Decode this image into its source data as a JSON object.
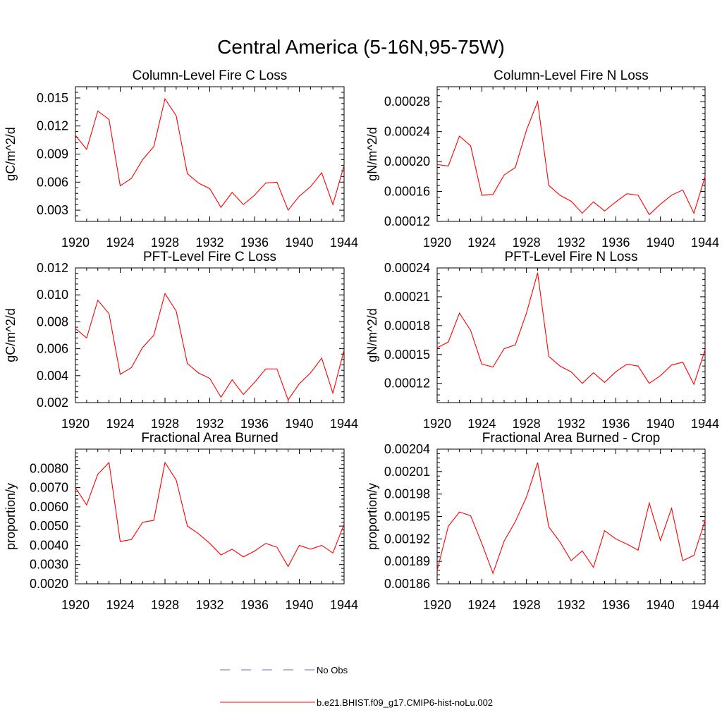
{
  "figure": {
    "title": "Central America (5-16N,95-75W)"
  },
  "legend": {
    "entries": [
      {
        "label": "No Obs",
        "color": "#6a6ad8",
        "style": "dashed"
      },
      {
        "label": "b.e21.BHIST.f09_g17.CMIP6-hist-noLu.002",
        "color": "#ff0000",
        "style": "solid"
      }
    ]
  },
  "chart_data": [
    {
      "type": "line",
      "title": "Column-Level Fire C Loss",
      "ylabel": "gC/m^2/d",
      "xlim": [
        1920,
        1944
      ],
      "xticks": [
        "1920",
        "1924",
        "1928",
        "1932",
        "1936",
        "1940",
        "1944"
      ],
      "ylim": [
        0.0018,
        0.0162
      ],
      "yticks": [
        0.003,
        0.006,
        0.009,
        0.012,
        0.015
      ],
      "ytick_labels": [
        "0.003",
        "0.006",
        "0.009",
        "0.012",
        "0.015"
      ],
      "series": [
        {
          "color": "#ff0000",
          "x": [
            1920,
            1921,
            1922,
            1923,
            1924,
            1925,
            1926,
            1927,
            1928,
            1929,
            1930,
            1931,
            1932,
            1933,
            1934,
            1935,
            1936,
            1937,
            1938,
            1939,
            1940,
            1941,
            1942,
            1943,
            1944
          ],
          "values": [
            0.011,
            0.0095,
            0.0136,
            0.0127,
            0.0056,
            0.0064,
            0.0084,
            0.0098,
            0.0149,
            0.0131,
            0.0069,
            0.0059,
            0.0053,
            0.0033,
            0.0049,
            0.0036,
            0.0046,
            0.0059,
            0.006,
            0.003,
            0.0045,
            0.0055,
            0.007,
            0.0036,
            0.0078
          ]
        }
      ]
    },
    {
      "type": "line",
      "title": "Column-Level Fire N Loss",
      "ylabel": "gN/m^2/d",
      "xlim": [
        1920,
        1944
      ],
      "xticks": [
        "1920",
        "1924",
        "1928",
        "1932",
        "1936",
        "1940",
        "1944"
      ],
      "ylim": [
        0.00012,
        0.0003
      ],
      "yticks": [
        0.00012,
        0.00016,
        0.0002,
        0.00024,
        0.00028
      ],
      "ytick_labels": [
        "0.00012",
        "0.00016",
        "0.00020",
        "0.00024",
        "0.00028"
      ],
      "series": [
        {
          "color": "#ff0000",
          "x": [
            1920,
            1921,
            1922,
            1923,
            1924,
            1925,
            1926,
            1927,
            1928,
            1929,
            1930,
            1931,
            1932,
            1933,
            1934,
            1935,
            1936,
            1937,
            1938,
            1939,
            1940,
            1941,
            1942,
            1943,
            1944
          ],
          "values": [
            0.000196,
            0.000194,
            0.000234,
            0.000221,
            0.000155,
            0.000156,
            0.000182,
            0.000192,
            0.000242,
            0.00028,
            0.000168,
            0.000155,
            0.000147,
            0.000131,
            0.000146,
            0.000134,
            0.000146,
            0.000157,
            0.000155,
            0.000129,
            0.000143,
            0.000155,
            0.000162,
            0.000131,
            0.00018
          ]
        }
      ]
    },
    {
      "type": "line",
      "title": "PFT-Level Fire C Loss",
      "ylabel": "gC/m^2/d",
      "xlim": [
        1920,
        1944
      ],
      "xticks": [
        "1920",
        "1924",
        "1928",
        "1932",
        "1936",
        "1940",
        "1944"
      ],
      "ylim": [
        0.002,
        0.012
      ],
      "yticks": [
        0.002,
        0.004,
        0.006,
        0.008,
        0.01,
        0.012
      ],
      "ytick_labels": [
        "0.002",
        "0.004",
        "0.006",
        "0.008",
        "0.010",
        "0.012"
      ],
      "series": [
        {
          "color": "#ff0000",
          "x": [
            1920,
            1921,
            1922,
            1923,
            1924,
            1925,
            1926,
            1927,
            1928,
            1929,
            1930,
            1931,
            1932,
            1933,
            1934,
            1935,
            1936,
            1937,
            1938,
            1939,
            1940,
            1941,
            1942,
            1943,
            1944
          ],
          "values": [
            0.0075,
            0.0068,
            0.0096,
            0.0086,
            0.0041,
            0.0046,
            0.0061,
            0.007,
            0.0101,
            0.0088,
            0.0049,
            0.0042,
            0.0038,
            0.0024,
            0.0037,
            0.0026,
            0.0035,
            0.0045,
            0.0045,
            0.0022,
            0.0034,
            0.0042,
            0.0053,
            0.0027,
            0.0059
          ]
        }
      ]
    },
    {
      "type": "line",
      "title": "PFT-Level Fire N Loss",
      "ylabel": "gN/m^2/d",
      "xlim": [
        1920,
        1944
      ],
      "xticks": [
        "1920",
        "1924",
        "1928",
        "1932",
        "1936",
        "1940",
        "1944"
      ],
      "ylim": [
        0.0001,
        0.00024
      ],
      "yticks": [
        0.00012,
        0.00015,
        0.00018,
        0.00021,
        0.00024
      ],
      "ytick_labels": [
        "0.00012",
        "0.00015",
        "0.00018",
        "0.00021",
        "0.00024"
      ],
      "series": [
        {
          "color": "#ff0000",
          "x": [
            1920,
            1921,
            1922,
            1923,
            1924,
            1925,
            1926,
            1927,
            1928,
            1929,
            1930,
            1931,
            1932,
            1933,
            1934,
            1935,
            1936,
            1937,
            1938,
            1939,
            1940,
            1941,
            1942,
            1943,
            1944
          ],
          "values": [
            0.000157,
            0.000163,
            0.000193,
            0.000175,
            0.00014,
            0.000137,
            0.000156,
            0.00016,
            0.000193,
            0.000235,
            0.000148,
            0.000138,
            0.000132,
            0.00012,
            0.000131,
            0.000121,
            0.000132,
            0.00014,
            0.000138,
            0.00012,
            0.000128,
            0.000139,
            0.000142,
            0.000119,
            0.000155
          ]
        }
      ]
    },
    {
      "type": "line",
      "title": "Fractional Area Burned",
      "ylabel": "proportion/y",
      "xlim": [
        1920,
        1944
      ],
      "xticks": [
        "1920",
        "1924",
        "1928",
        "1932",
        "1936",
        "1940",
        "1944"
      ],
      "ylim": [
        0.002,
        0.009
      ],
      "yticks": [
        0.002,
        0.003,
        0.004,
        0.005,
        0.006,
        0.007,
        0.008
      ],
      "ytick_labels": [
        "0.0020",
        "0.0030",
        "0.0040",
        "0.0050",
        "0.0060",
        "0.0070",
        "0.0080"
      ],
      "series": [
        {
          "color": "#ff0000",
          "x": [
            1920,
            1921,
            1922,
            1923,
            1924,
            1925,
            1926,
            1927,
            1928,
            1929,
            1930,
            1931,
            1932,
            1933,
            1934,
            1935,
            1936,
            1937,
            1938,
            1939,
            1940,
            1941,
            1942,
            1943,
            1944
          ],
          "values": [
            0.007,
            0.0061,
            0.0077,
            0.0083,
            0.0042,
            0.0043,
            0.0052,
            0.0053,
            0.0083,
            0.0074,
            0.005,
            0.0046,
            0.0041,
            0.0035,
            0.0038,
            0.0034,
            0.0037,
            0.0041,
            0.0039,
            0.0029,
            0.004,
            0.0038,
            0.004,
            0.0036,
            0.0051
          ]
        }
      ]
    },
    {
      "type": "line",
      "title": "Fractional Area Burned - Crop",
      "ylabel": "proportion/y",
      "xlim": [
        1920,
        1944
      ],
      "xticks": [
        "1920",
        "1924",
        "1928",
        "1932",
        "1936",
        "1940",
        "1944"
      ],
      "ylim": [
        0.00186,
        0.00204
      ],
      "yticks": [
        0.00186,
        0.00189,
        0.00192,
        0.00195,
        0.00198,
        0.00201,
        0.00204
      ],
      "ytick_labels": [
        "0.00186",
        "0.00189",
        "0.00192",
        "0.00195",
        "0.00198",
        "0.00201",
        "0.00204"
      ],
      "series": [
        {
          "color": "#ff0000",
          "x": [
            1920,
            1921,
            1922,
            1923,
            1924,
            1925,
            1926,
            1927,
            1928,
            1929,
            1930,
            1931,
            1932,
            1933,
            1934,
            1935,
            1936,
            1937,
            1938,
            1939,
            1940,
            1941,
            1942,
            1943,
            1944
          ],
          "values": [
            0.001878,
            0.001937,
            0.001956,
            0.001951,
            0.001914,
            0.001874,
            0.001917,
            0.001943,
            0.001976,
            0.002022,
            0.001936,
            0.001916,
            0.001891,
            0.001904,
            0.001882,
            0.001931,
            0.00192,
            0.001913,
            0.001905,
            0.001968,
            0.001918,
            0.001961,
            0.001891,
            0.001898,
            0.001945
          ]
        }
      ]
    }
  ]
}
